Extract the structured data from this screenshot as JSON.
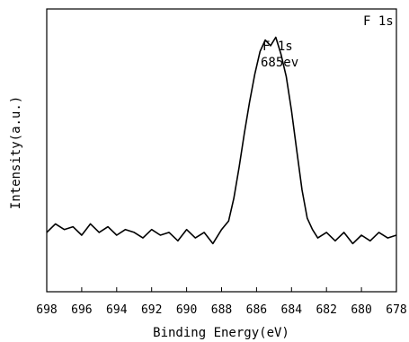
{
  "chart_data": {
    "type": "line",
    "panel_label": "F 1s",
    "annotations": [
      "F 1s",
      "685ev"
    ],
    "xlabel": "Binding Energy(eV)",
    "ylabel": "Intensity(a.u.)",
    "xlim": [
      698,
      678
    ],
    "x_reversed": true,
    "x_ticks": [
      "698",
      "696",
      "694",
      "692",
      "690",
      "688",
      "686",
      "684",
      "682",
      "680",
      "678"
    ],
    "y_ticks_visible": false,
    "ylim": [
      0,
      1
    ],
    "series": [
      {
        "x": [
          698.0,
          697.5,
          697.0,
          696.5,
          696.0,
          695.5,
          695.0,
          694.5,
          694.0,
          693.5,
          693.0,
          692.5,
          692.0,
          691.5,
          691.0,
          690.5,
          690.0,
          689.5,
          689.0,
          688.5,
          688.0,
          687.6,
          687.3,
          687.0,
          686.7,
          686.4,
          686.1,
          685.8,
          685.5,
          685.2,
          684.9,
          684.6,
          684.3,
          684.0,
          683.7,
          683.4,
          683.1,
          682.8,
          682.5,
          682.0,
          681.5,
          681.0,
          680.5,
          680.0,
          679.5,
          679.0,
          678.5,
          678.0
        ],
        "y": [
          0.21,
          0.24,
          0.22,
          0.23,
          0.2,
          0.24,
          0.21,
          0.23,
          0.2,
          0.22,
          0.21,
          0.19,
          0.22,
          0.2,
          0.21,
          0.18,
          0.22,
          0.19,
          0.21,
          0.17,
          0.22,
          0.25,
          0.33,
          0.44,
          0.56,
          0.67,
          0.77,
          0.85,
          0.89,
          0.87,
          0.9,
          0.84,
          0.76,
          0.64,
          0.5,
          0.36,
          0.26,
          0.22,
          0.19,
          0.21,
          0.18,
          0.21,
          0.17,
          0.2,
          0.18,
          0.21,
          0.19,
          0.2
        ]
      }
    ],
    "line_color": "#000000"
  }
}
